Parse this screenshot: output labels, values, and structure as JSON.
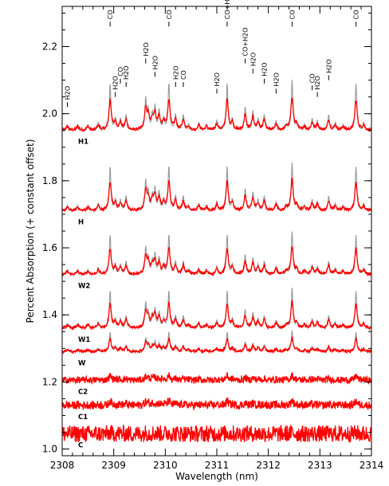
{
  "chart_data": {
    "type": "line",
    "xlabel": "Wavelength (nm)",
    "ylabel": "Percent Absorption (+ constant offset)",
    "xlim": [
      2308,
      2314
    ],
    "ylim": [
      0.98,
      2.32
    ],
    "x_ticks": [
      2308,
      2309,
      2310,
      2311,
      2312,
      2313,
      2314
    ],
    "y_ticks": [
      1.0,
      1.2,
      1.4,
      1.6,
      1.8,
      2.0,
      2.2
    ],
    "x_tick_labels": [
      "2308",
      "2309",
      "2310",
      "2311",
      "2312",
      "2313",
      "2314"
    ],
    "y_tick_labels": [
      "1.0",
      "1.2",
      "1.4",
      "1.6",
      "1.8",
      "2.0",
      "2.2"
    ],
    "series_colors": {
      "observed": "#ff0000",
      "model": "#999999"
    },
    "spectra": [
      {
        "label": "H1",
        "offset": 1.95,
        "scale": 1.0,
        "has_model": true,
        "noise": 0.004
      },
      {
        "label": "H",
        "offset": 1.71,
        "scale": 0.95,
        "has_model": true,
        "noise": 0.004
      },
      {
        "label": "W2",
        "offset": 1.52,
        "scale": 0.85,
        "has_model": true,
        "noise": 0.004
      },
      {
        "label": "W1",
        "offset": 1.36,
        "scale": 0.8,
        "has_model": true,
        "noise": 0.004
      },
      {
        "label": "W",
        "offset": 1.29,
        "scale": 0.42,
        "has_model": true,
        "noise": 0.004
      },
      {
        "label": "C2",
        "offset": 1.205,
        "scale": 0.15,
        "has_model": false,
        "noise": 0.01
      },
      {
        "label": "C1",
        "offset": 1.13,
        "scale": 0.15,
        "has_model": false,
        "noise": 0.012
      },
      {
        "label": "C",
        "offset": 1.045,
        "scale": 0.04,
        "has_model": false,
        "noise": 0.025
      }
    ],
    "lines": [
      {
        "x": 2308.1,
        "depth": 0.015,
        "label": "H2O",
        "ly": 2.02
      },
      {
        "x": 2308.93,
        "depth": 0.12,
        "label": "CO",
        "ly": 2.26
      },
      {
        "x": 2309.03,
        "depth": 0.03,
        "label": "H2O",
        "ly": 2.05
      },
      {
        "x": 2309.13,
        "depth": 0.03,
        "label": "CO",
        "ly": 2.09
      },
      {
        "x": 2309.24,
        "depth": 0.04,
        "label": "H2O",
        "ly": 2.08
      },
      {
        "x": 2309.62,
        "depth": 0.08,
        "label": "H2O",
        "ly": 2.15
      },
      {
        "x": 2309.8,
        "depth": 0.06,
        "label": "H2O",
        "ly": 2.11
      },
      {
        "x": 2310.07,
        "depth": 0.12,
        "label": "CO",
        "ly": 2.26
      },
      {
        "x": 2310.2,
        "depth": 0.04,
        "label": "H2O",
        "ly": 2.08
      },
      {
        "x": 2310.35,
        "depth": 0.04,
        "label": "CO",
        "ly": 2.08
      },
      {
        "x": 2311.0,
        "depth": 0.025,
        "label": "H2O",
        "ly": 2.06
      },
      {
        "x": 2311.2,
        "depth": 0.12,
        "label": "CO+H2O",
        "ly": 2.26
      },
      {
        "x": 2311.55,
        "depth": 0.06,
        "label": "CO+H2O",
        "ly": 2.15
      },
      {
        "x": 2311.7,
        "depth": 0.05,
        "label": "H2O",
        "ly": 2.12
      },
      {
        "x": 2311.92,
        "depth": 0.04,
        "label": "H2O",
        "ly": 2.09
      },
      {
        "x": 2312.15,
        "depth": 0.025,
        "label": "H2O",
        "ly": 2.06
      },
      {
        "x": 2312.46,
        "depth": 0.13,
        "label": "CO",
        "ly": 2.26
      },
      {
        "x": 2312.85,
        "depth": 0.03,
        "label": "CO",
        "ly": 2.07
      },
      {
        "x": 2312.95,
        "depth": 0.025,
        "label": "H2O",
        "ly": 2.05
      },
      {
        "x": 2313.17,
        "depth": 0.04,
        "label": "H2O",
        "ly": 2.1
      },
      {
        "x": 2313.7,
        "depth": 0.12,
        "label": "CO",
        "ly": 2.26
      }
    ],
    "extra_lines": [
      {
        "x": 2309.67,
        "depth": 0.05
      },
      {
        "x": 2309.75,
        "depth": 0.04
      },
      {
        "x": 2309.88,
        "depth": 0.05
      },
      {
        "x": 2309.97,
        "depth": 0.03
      },
      {
        "x": 2310.45,
        "depth": 0.015
      },
      {
        "x": 2310.65,
        "depth": 0.02
      },
      {
        "x": 2310.8,
        "depth": 0.015
      },
      {
        "x": 2311.3,
        "depth": 0.03
      },
      {
        "x": 2311.8,
        "depth": 0.03
      },
      {
        "x": 2312.35,
        "depth": 0.015
      },
      {
        "x": 2312.55,
        "depth": 0.02
      },
      {
        "x": 2312.7,
        "depth": 0.015
      },
      {
        "x": 2313.3,
        "depth": 0.02
      },
      {
        "x": 2313.45,
        "depth": 0.015
      },
      {
        "x": 2313.85,
        "depth": 0.02
      },
      {
        "x": 2308.3,
        "depth": 0.015
      },
      {
        "x": 2308.5,
        "depth": 0.015
      },
      {
        "x": 2308.7,
        "depth": 0.02
      }
    ],
    "grid": false,
    "legend": "none"
  }
}
